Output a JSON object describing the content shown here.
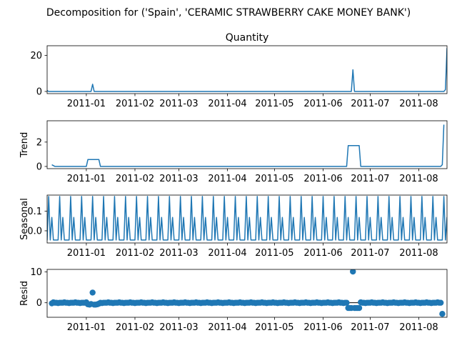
{
  "figure": {
    "suptitle": "Decomposition for ('Spain', 'CERAMIC STRAWBERRY CAKE MONEY BANK')"
  },
  "colors": {
    "line": "#1f77b4",
    "axis": "#000000",
    "background": "#ffffff"
  },
  "chart_data": [
    {
      "type": "line",
      "title": "Quantity",
      "ylabel": "",
      "xlim": [
        "2010-12-07",
        "2011-08-19"
      ],
      "ylim": [
        -1.2,
        25.3
      ],
      "yticks": [
        0,
        20
      ],
      "xticks": [
        "2011-01",
        "2011-02",
        "2011-03",
        "2011-04",
        "2011-05",
        "2011-06",
        "2011-07",
        "2011-08"
      ],
      "points": [
        [
          "2010-12-07",
          0.5
        ],
        [
          "2010-12-08",
          0
        ],
        [
          "2011-01-04",
          0
        ],
        [
          "2011-01-05",
          4
        ],
        [
          "2011-01-06",
          0
        ],
        [
          "2011-06-19",
          0
        ],
        [
          "2011-06-20",
          12
        ],
        [
          "2011-06-21",
          0
        ],
        [
          "2011-08-17",
          0
        ],
        [
          "2011-08-18",
          1
        ],
        [
          "2011-08-19",
          24
        ]
      ]
    },
    {
      "type": "line",
      "title": "",
      "ylabel": "Trend",
      "xlim": [
        "2010-12-07",
        "2011-08-19"
      ],
      "ylim": [
        -0.18,
        3.75
      ],
      "yticks": [
        0,
        2
      ],
      "xticks": [
        "2011-01",
        "2011-02",
        "2011-03",
        "2011-04",
        "2011-05",
        "2011-06",
        "2011-07",
        "2011-08"
      ],
      "points": [
        [
          "2010-12-10",
          0.14
        ],
        [
          "2010-12-12",
          0
        ],
        [
          "2011-01-01",
          0
        ],
        [
          "2011-01-02",
          0.57
        ],
        [
          "2011-01-09",
          0.57
        ],
        [
          "2011-01-10",
          0
        ],
        [
          "2011-06-16",
          0
        ],
        [
          "2011-06-17",
          1.71
        ],
        [
          "2011-06-24",
          1.71
        ],
        [
          "2011-06-25",
          0
        ],
        [
          "2011-08-15",
          0
        ],
        [
          "2011-08-16",
          0.14
        ],
        [
          "2011-08-17",
          3.43
        ]
      ]
    },
    {
      "type": "line",
      "title": "",
      "ylabel": "Seasonal",
      "xlim": [
        "2010-12-07",
        "2011-08-19"
      ],
      "ylim": [
        -0.062,
        0.182
      ],
      "yticks": [
        0.0,
        0.1
      ],
      "xticks": [
        "2011-01",
        "2011-02",
        "2011-03",
        "2011-04",
        "2011-05",
        "2011-06",
        "2011-07",
        "2011-08"
      ],
      "period_days": 7,
      "pattern": [
        0.068,
        -0.047,
        -0.047,
        -0.047,
        -0.047,
        0.175,
        -0.047
      ],
      "pattern_start": "2010-12-03"
    },
    {
      "type": "scatter",
      "title": "",
      "ylabel": "Resid",
      "xlim": [
        "2010-12-07",
        "2011-08-19"
      ],
      "ylim": [
        -4.7,
        10.8
      ],
      "yticks": [
        0,
        10
      ],
      "xticks": [
        "2011-01",
        "2011-02",
        "2011-03",
        "2011-04",
        "2011-05",
        "2011-06",
        "2011-07",
        "2011-08"
      ],
      "baseline": 0,
      "range": [
        "2010-12-10",
        "2011-08-16"
      ],
      "outliers": [
        [
          "2010-12-10",
          -0.2
        ],
        [
          "2011-01-02",
          -0.5
        ],
        [
          "2011-01-03",
          -0.6
        ],
        [
          "2011-01-04",
          -0.4
        ],
        [
          "2011-01-05",
          3.3
        ],
        [
          "2011-01-06",
          -0.6
        ],
        [
          "2011-01-07",
          -0.6
        ],
        [
          "2011-01-08",
          -0.5
        ],
        [
          "2011-01-09",
          -0.3
        ],
        [
          "2011-06-17",
          -1.7
        ],
        [
          "2011-06-18",
          -1.7
        ],
        [
          "2011-06-19",
          -1.7
        ],
        [
          "2011-06-20",
          10.1
        ],
        [
          "2011-06-21",
          -1.7
        ],
        [
          "2011-06-22",
          -1.7
        ],
        [
          "2011-06-23",
          -1.7
        ],
        [
          "2011-06-24",
          -1.7
        ],
        [
          "2011-08-16",
          -3.6
        ]
      ]
    }
  ]
}
